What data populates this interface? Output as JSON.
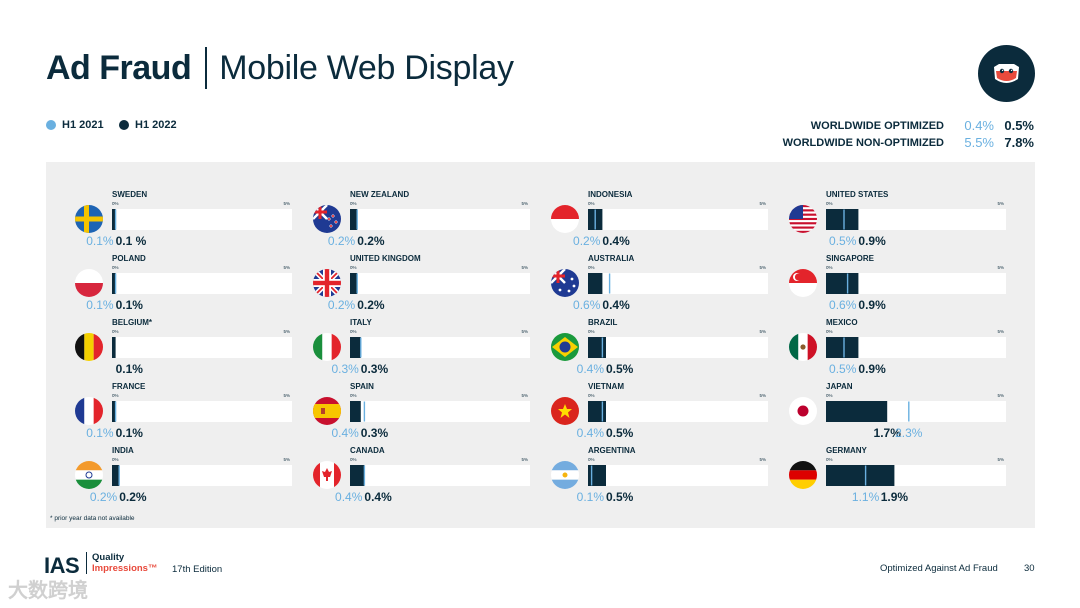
{
  "header": {
    "title_bold": "Ad Fraud",
    "title_light": "Mobile Web Display"
  },
  "legend": [
    {
      "label": "H1 2021",
      "color": "#6ab0e0"
    },
    {
      "label": "H1 2022",
      "color": "#0b2b3c"
    }
  ],
  "worldwide": [
    {
      "label": "WORLDWIDE OPTIMIZED",
      "h1_2021": "0.4%",
      "h1_2022": "0.5%"
    },
    {
      "label": "WORLDWIDE NON-OPTIMIZED",
      "h1_2021": "5.5%",
      "h1_2022": "7.8%"
    }
  ],
  "chart_data": {
    "type": "bar",
    "axis_min_label": "0%",
    "axis_max_label": "5%",
    "xlim": [
      0,
      5
    ],
    "series_names": [
      "H1 2021",
      "H1 2022"
    ],
    "colors": {
      "h1_2021": "#6ab0e0",
      "h1_2022": "#0b2b3c"
    },
    "columns": [
      [
        {
          "country": "SWEDEN",
          "flag": "sweden",
          "h1_2021": 0.1,
          "h1_2022": 0.1,
          "label_2021": "0.1%",
          "label_2022": "0.1 %"
        },
        {
          "country": "POLAND",
          "flag": "poland",
          "h1_2021": 0.1,
          "h1_2022": 0.1,
          "label_2021": "0.1%",
          "label_2022": "0.1%"
        },
        {
          "country": "BELGIUM*",
          "flag": "belgium",
          "h1_2021": null,
          "h1_2022": 0.1,
          "label_2021": "",
          "label_2022": "0.1%"
        },
        {
          "country": "FRANCE",
          "flag": "france",
          "h1_2021": 0.1,
          "h1_2022": 0.1,
          "label_2021": "0.1%",
          "label_2022": "0.1%"
        },
        {
          "country": "INDIA",
          "flag": "india",
          "h1_2021": 0.2,
          "h1_2022": 0.2,
          "label_2021": "0.2%",
          "label_2022": "0.2%"
        }
      ],
      [
        {
          "country": "NEW ZEALAND",
          "flag": "new-zealand",
          "h1_2021": 0.2,
          "h1_2022": 0.2,
          "label_2021": "0.2%",
          "label_2022": "0.2%"
        },
        {
          "country": "UNITED KINGDOM",
          "flag": "uk",
          "h1_2021": 0.2,
          "h1_2022": 0.2,
          "label_2021": "0.2%",
          "label_2022": "0.2%"
        },
        {
          "country": "ITALY",
          "flag": "italy",
          "h1_2021": 0.3,
          "h1_2022": 0.3,
          "label_2021": "0.3%",
          "label_2022": "0.3%"
        },
        {
          "country": "SPAIN",
          "flag": "spain",
          "h1_2021": 0.4,
          "h1_2022": 0.3,
          "label_2021": "0.4%",
          "label_2022": "0.3%"
        },
        {
          "country": "CANADA",
          "flag": "canada",
          "h1_2021": 0.4,
          "h1_2022": 0.4,
          "label_2021": "0.4%",
          "label_2022": "0.4%"
        }
      ],
      [
        {
          "country": "INDONESIA",
          "flag": "indonesia",
          "h1_2021": 0.2,
          "h1_2022": 0.4,
          "label_2021": "0.2%",
          "label_2022": "0.4%"
        },
        {
          "country": "AUSTRALIA",
          "flag": "australia",
          "h1_2021": 0.6,
          "h1_2022": 0.4,
          "label_2021": "0.6%",
          "label_2022": "0.4%"
        },
        {
          "country": "BRAZIL",
          "flag": "brazil",
          "h1_2021": 0.4,
          "h1_2022": 0.5,
          "label_2021": "0.4%",
          "label_2022": "0.5%"
        },
        {
          "country": "VIETNAM",
          "flag": "vietnam",
          "h1_2021": 0.4,
          "h1_2022": 0.5,
          "label_2021": "0.4%",
          "label_2022": "0.5%"
        },
        {
          "country": "ARGENTINA",
          "flag": "argentina",
          "h1_2021": 0.1,
          "h1_2022": 0.5,
          "label_2021": "0.1%",
          "label_2022": "0.5%"
        }
      ],
      [
        {
          "country": "UNITED STATES",
          "flag": "usa",
          "h1_2021": 0.5,
          "h1_2022": 0.9,
          "label_2021": "0.5%",
          "label_2022": "0.9%"
        },
        {
          "country": "SINGAPORE",
          "flag": "singapore",
          "h1_2021": 0.6,
          "h1_2022": 0.9,
          "label_2021": "0.6%",
          "label_2022": "0.9%"
        },
        {
          "country": "MEXICO",
          "flag": "mexico",
          "h1_2021": 0.5,
          "h1_2022": 0.9,
          "label_2021": "0.5%",
          "label_2022": "0.9%"
        },
        {
          "country": "JAPAN",
          "flag": "japan",
          "h1_2021": 2.3,
          "h1_2022": 1.7,
          "label_2021": "2.3%",
          "label_2022": "1.7%"
        },
        {
          "country": "GERMANY",
          "flag": "germany",
          "h1_2021": 1.1,
          "h1_2022": 1.9,
          "label_2021": "1.1%",
          "label_2022": "1.9%"
        }
      ]
    ]
  },
  "footnote": "* prior year data not available",
  "footer": {
    "brand": "IAS",
    "quality": "Quality",
    "impressions": "Impressions™",
    "edition": "17th Edition",
    "right_text": "Optimized Against Ad Fraud",
    "page": "30"
  },
  "watermark": "大数跨境"
}
